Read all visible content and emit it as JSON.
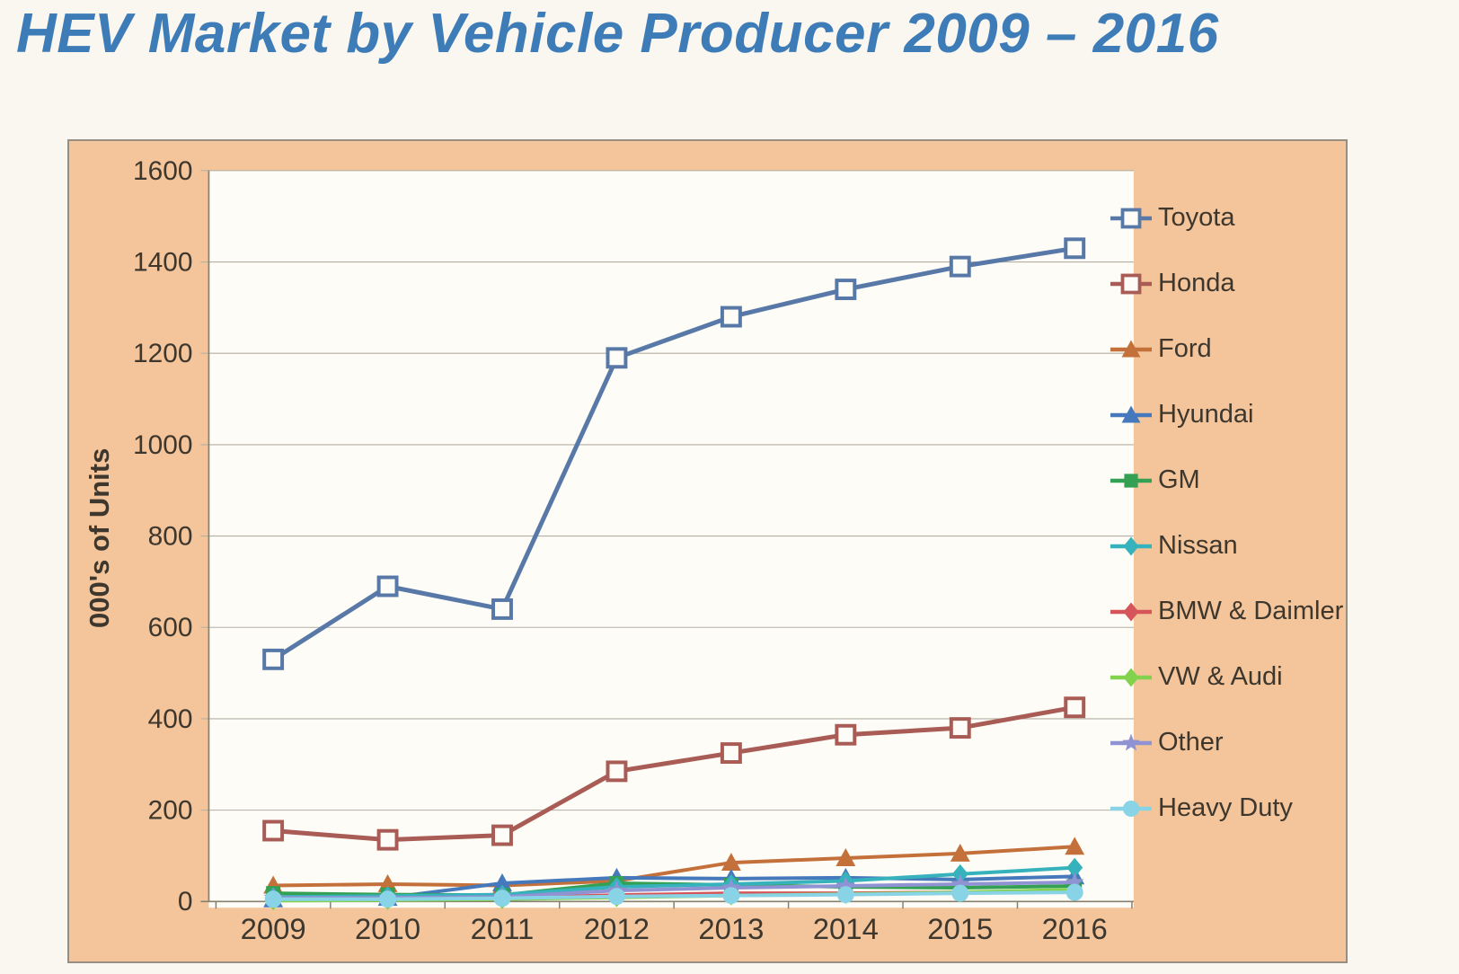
{
  "page": {
    "title": "HEV Market by Vehicle Producer 2009 – 2016"
  },
  "chart": {
    "frame_color": "#f4c49a",
    "plot_background_color": "#fdfcf6",
    "title_color": "#3e7cb8",
    "text_color": "#3d372e",
    "grid_color": "#b5aea2",
    "axis_color": "#87806f"
  },
  "chart_data": {
    "type": "line",
    "title": "HEV Market by Vehicle Producer 2009 – 2016",
    "xlabel": "",
    "ylabel": "000's of Units",
    "ylim": [
      0,
      1600
    ],
    "y_ticks": [
      0,
      200,
      400,
      600,
      800,
      1000,
      1200,
      1400,
      1600
    ],
    "grid": true,
    "legend_position": "right",
    "categories": [
      "2009",
      "2010",
      "2011",
      "2012",
      "2013",
      "2014",
      "2015",
      "2016"
    ],
    "series": [
      {
        "name": "Toyota",
        "color": "#5878a8",
        "marker": "square-open",
        "values": [
          530,
          690,
          640,
          1190,
          1280,
          1340,
          1390,
          1430
        ]
      },
      {
        "name": "Honda",
        "color": "#a85c55",
        "marker": "square-open",
        "values": [
          155,
          135,
          145,
          285,
          325,
          365,
          380,
          425
        ]
      },
      {
        "name": "Ford",
        "color": "#c4703a",
        "marker": "triangle",
        "values": [
          35,
          38,
          35,
          45,
          85,
          95,
          105,
          120
        ]
      },
      {
        "name": "Hyundai",
        "color": "#4678bc",
        "marker": "triangle",
        "values": [
          5,
          8,
          40,
          52,
          50,
          52,
          48,
          55
        ]
      },
      {
        "name": "GM",
        "color": "#33a053",
        "marker": "square",
        "values": [
          18,
          15,
          14,
          40,
          36,
          32,
          30,
          34
        ]
      },
      {
        "name": "Nissan",
        "color": "#35b2bb",
        "marker": "diamond",
        "values": [
          10,
          12,
          15,
          32,
          38,
          45,
          60,
          74
        ]
      },
      {
        "name": "BMW & Daimler",
        "color": "#d6555a",
        "marker": "diamond",
        "values": [
          4,
          5,
          7,
          14,
          18,
          18,
          20,
          22
        ]
      },
      {
        "name": "VW & Audi",
        "color": "#82d24d",
        "marker": "diamond",
        "values": [
          2,
          3,
          5,
          9,
          13,
          16,
          20,
          26
        ]
      },
      {
        "name": "Other",
        "color": "#8f93d4",
        "marker": "star",
        "values": [
          8,
          8,
          10,
          24,
          30,
          34,
          38,
          42
        ]
      },
      {
        "name": "Heavy Duty",
        "color": "#88d4e6",
        "marker": "circle",
        "values": [
          5,
          5,
          7,
          11,
          13,
          15,
          18,
          20
        ]
      }
    ]
  }
}
